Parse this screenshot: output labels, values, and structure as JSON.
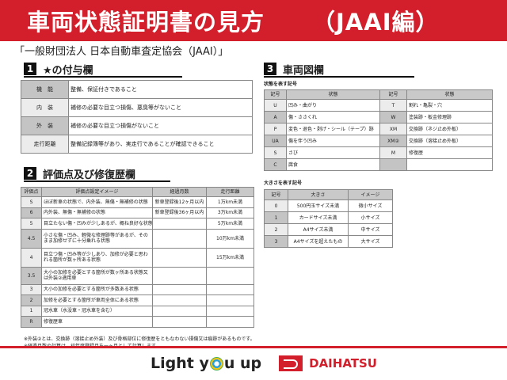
{
  "header": {
    "title": "車両状態証明書の見方",
    "subtitle": "（JAAI編）"
  },
  "organization": "「一般財団法人 日本自動車査定協会（JAAI）」",
  "section1": {
    "num": "1",
    "title": "★の付与欄",
    "rows": [
      {
        "key": "機　能",
        "value": "整備、保証付きであること"
      },
      {
        "key": "内　装",
        "value": "補修の必要な目立つ損傷、悪臭等がないこと"
      },
      {
        "key": "外　装",
        "value": "補修の必要な目立つ損傷がないこと"
      },
      {
        "key": "走行距離",
        "value": "整備記録簿等があり、実走行であることが確認できること"
      }
    ]
  },
  "section2": {
    "num": "2",
    "title": "評価点及び修復歴欄",
    "headers": [
      "評価点",
      "評価点設定イメージ",
      "経過月数",
      "走行距離"
    ],
    "rows": [
      [
        "S",
        "ほぼ新車の状態で、内外装、無傷・無補修の状態",
        "新車登録後12ヶ月以内",
        "1万km未満"
      ],
      [
        "6",
        "内外装、無傷・無補修の状態",
        "新車登録後36ヶ月以内",
        "3万km未満"
      ],
      [
        "5",
        "目立たない傷・凹みが少しあるが、概ね良好な状態",
        "",
        "5万km未満"
      ],
      [
        "4.5",
        "小さな傷・凹み、軽微な修理跡等があるが、そのまま加修せずに十分乗れる状態",
        "",
        "10万km未満"
      ],
      [
        "4",
        "目立つ傷・凹み等が少しあり、加修が必要と思われる箇所が数ヶ所ある状態",
        "",
        "15万km未満"
      ],
      [
        "3.5",
        "大小の加修を必要とする箇所が数ヶ所ある状態又は外装②適用車",
        "",
        ""
      ],
      [
        "3",
        "大小の加修を必要とする箇所が多数ある状態",
        "",
        ""
      ],
      [
        "2",
        "加修を必要とする箇所が車両全体にある状態",
        "",
        ""
      ],
      [
        "1",
        "冠水車（水没車・冠水車を含む）",
        "",
        ""
      ],
      [
        "R",
        "修復歴車",
        "",
        ""
      ]
    ]
  },
  "section3": {
    "num": "3",
    "title": "車両図欄",
    "state_label": "状態を表す記号",
    "state_headers": [
      "記号",
      "状態",
      "記号",
      "状態"
    ],
    "state_rows": [
      [
        "U",
        "凹み・曲がり",
        "T",
        "割れ・亀裂・穴"
      ],
      [
        "A",
        "傷・ささくれ",
        "W",
        "塗装跡・板金修理跡"
      ],
      [
        "P",
        "変色・退色・剥げ・シール（テープ）跡",
        "XM",
        "交換跡（ネジ止め外板）"
      ],
      [
        "UA",
        "傷を伴う凹み",
        "XM②",
        "交換跡（溶接止め外板）"
      ],
      [
        "S",
        "さび",
        "M",
        "修復歴"
      ],
      [
        "C",
        "腐食",
        "",
        ""
      ]
    ],
    "size_label": "大きさを表す記号",
    "size_headers": [
      "記号",
      "大きさ",
      "イメージ"
    ],
    "size_rows": [
      [
        "0",
        "500円玉サイズ未満",
        "微小サイズ"
      ],
      [
        "1",
        "カードサイズ未満",
        "小サイズ"
      ],
      [
        "2",
        "A4サイズ未満",
        "中サイズ"
      ],
      [
        "3",
        "A4サイズを超えたもの",
        "大サイズ"
      ]
    ]
  },
  "notes": [
    "※外装②とは、交換跡（溶接止め外装）及び骨格部位に修復歴をともなわない損傷又は痕跡があるものです。",
    "※経過月数の計算は、初年度登録月を一ヶ月として計算します。"
  ],
  "footer": {
    "slogan_pre": "Light y",
    "slogan_post": "u up",
    "brand": "DAIHATSU"
  },
  "colors": {
    "brand_red": "#d21f2b"
  }
}
